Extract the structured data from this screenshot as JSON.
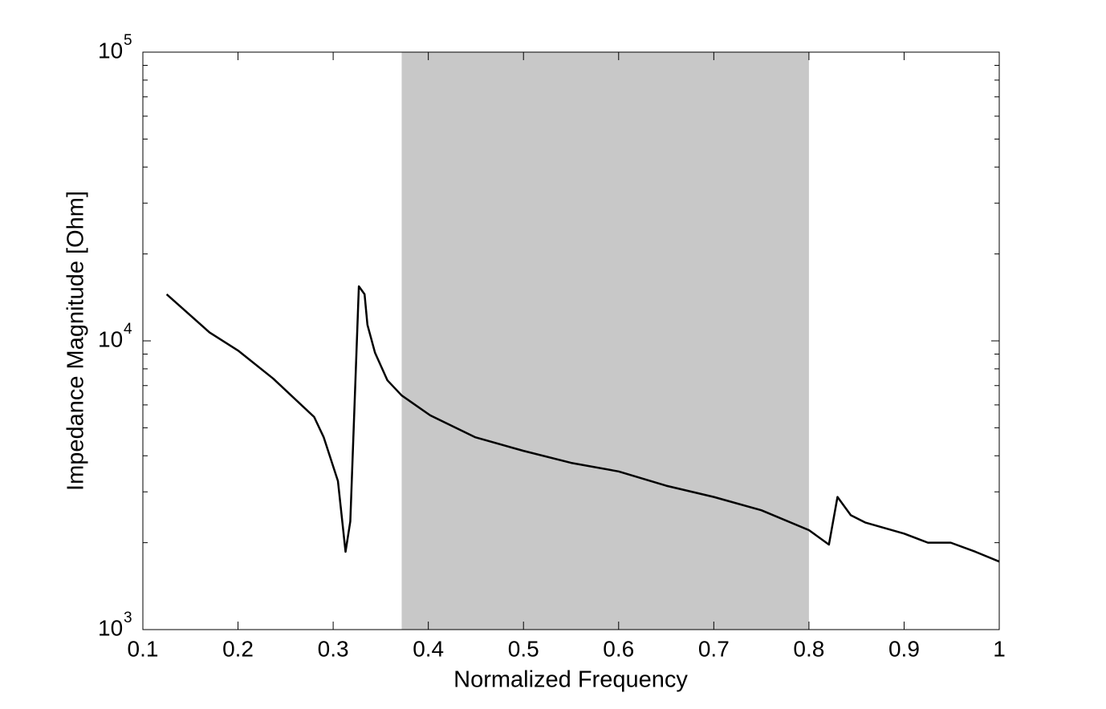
{
  "chart_data": {
    "type": "line",
    "x_label": "Normalized Frequency",
    "y_label": "Impedance Magnitude [Ohm]",
    "xlim": [
      0.1,
      1
    ],
    "xticks": [
      0.1,
      0.2,
      0.3,
      0.4,
      0.5,
      0.6,
      0.7,
      0.8,
      0.9,
      1
    ],
    "ylim": [
      1000,
      100000
    ],
    "yticks": [
      {
        "value": 1000,
        "label": "10"
      },
      {
        "value": 10000,
        "label": "10"
      },
      {
        "value": 100000,
        "label": "10"
      }
    ],
    "ytick_exponents": [
      "3",
      "4",
      "5"
    ],
    "yminorticks": [
      2000,
      3000,
      4000,
      5000,
      6000,
      7000,
      8000,
      9000,
      20000,
      30000,
      40000,
      50000,
      60000,
      70000,
      80000,
      90000
    ],
    "ylog": true,
    "shaded_region": [
      0.372,
      0.8
    ],
    "shade_color": "#c8c8c8",
    "series": [
      {
        "color": "#000000",
        "x": [
          0.125,
          0.17,
          0.2,
          0.237,
          0.28,
          0.29,
          0.305,
          0.313,
          0.318,
          0.327,
          0.333,
          0.336,
          0.344,
          0.357,
          0.372,
          0.402,
          0.449,
          0.5,
          0.55,
          0.6,
          0.65,
          0.7,
          0.75,
          0.8,
          0.821,
          0.83,
          0.844,
          0.859,
          0.9,
          0.925,
          0.949,
          0.975,
          1.0
        ],
        "values": [
          14500,
          10700,
          9260,
          7400,
          5450,
          4640,
          3270,
          1860,
          2370,
          15450,
          14500,
          11370,
          9090,
          7300,
          6470,
          5520,
          4640,
          4160,
          3780,
          3530,
          3150,
          2880,
          2590,
          2210,
          1970,
          2880,
          2490,
          2350,
          2150,
          2000,
          2000,
          1860,
          1720
        ]
      }
    ]
  }
}
